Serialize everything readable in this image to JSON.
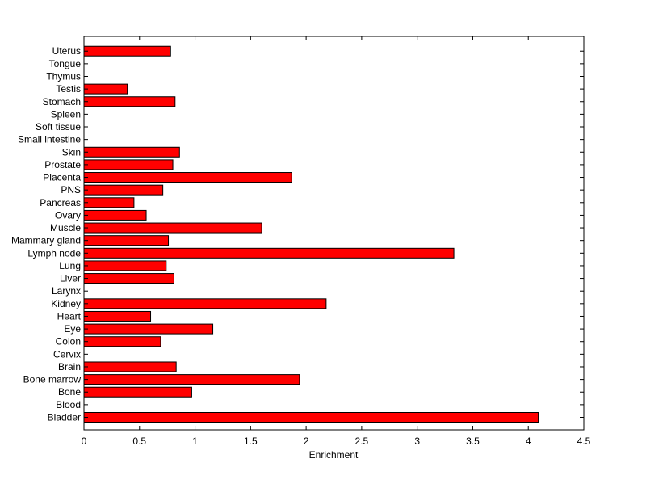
{
  "chart_data": {
    "type": "bar",
    "orientation": "horizontal",
    "title": "",
    "xlabel": "Enrichment",
    "ylabel": "",
    "xlim": [
      0,
      4.5
    ],
    "x_ticks": [
      "0",
      "0.5",
      "1",
      "1.5",
      "2",
      "2.5",
      "3",
      "3.5",
      "4",
      "4.5"
    ],
    "grid": false,
    "legend": "none",
    "bar_color": "#ff0000",
    "bar_edge_color": "#000000",
    "categories": [
      "Bladder",
      "Blood",
      "Bone",
      "Bone marrow",
      "Brain",
      "Cervix",
      "Colon",
      "Eye",
      "Heart",
      "Kidney",
      "Larynx",
      "Liver",
      "Lung",
      "Lymph node",
      "Mammary gland",
      "Muscle",
      "Ovary",
      "Pancreas",
      "PNS",
      "Placenta",
      "Prostate",
      "Skin",
      "Small intestine",
      "Soft tissue",
      "Spleen",
      "Stomach",
      "Testis",
      "Thymus",
      "Tongue",
      "Uterus"
    ],
    "values": [
      4.09,
      0,
      0.97,
      1.94,
      0.83,
      0,
      0.69,
      1.16,
      0.6,
      2.18,
      0,
      0.81,
      0.74,
      3.33,
      0.76,
      1.6,
      0.56,
      0.45,
      0.71,
      1.87,
      0.8,
      0.86,
      0,
      0,
      0,
      0.82,
      0.39,
      0,
      0,
      0.78
    ]
  }
}
